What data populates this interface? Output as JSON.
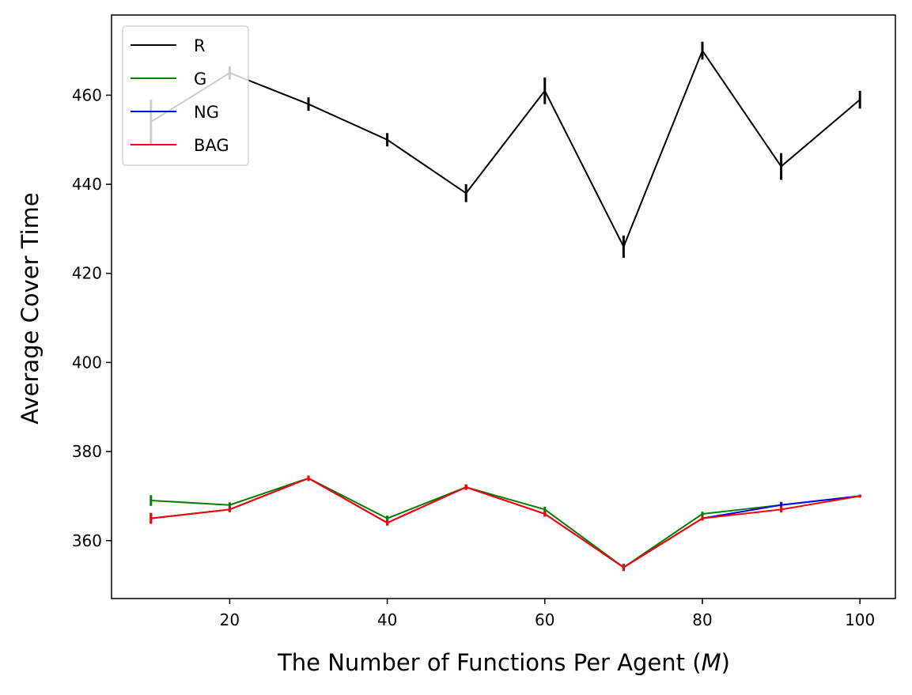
{
  "chart_data": {
    "type": "line",
    "xlabel": "The Number of Functions Per Agent (",
    "xlabel_var": "M",
    "xlabel_close": ")",
    "ylabel": "Average Cover Time",
    "xlim": [
      5,
      104.5
    ],
    "ylim": [
      347,
      478
    ],
    "xticks": [
      20,
      40,
      60,
      80,
      100
    ],
    "yticks": [
      360,
      380,
      400,
      420,
      440,
      460
    ],
    "grid": false,
    "legend_position": "top-left",
    "x": [
      10,
      20,
      30,
      40,
      50,
      60,
      70,
      80,
      90,
      100
    ],
    "series": [
      {
        "name": "R",
        "color": "#000000",
        "values": [
          454,
          465,
          458,
          450,
          438,
          461,
          426,
          470,
          444,
          459
        ],
        "errors": [
          5,
          1.5,
          1.5,
          1.5,
          2,
          3,
          2.5,
          2,
          3,
          2
        ]
      },
      {
        "name": "G",
        "color": "#008000",
        "values": [
          369,
          368,
          374,
          365,
          372,
          367,
          354,
          366,
          368,
          370
        ],
        "errors": [
          1.2,
          0.6,
          0.6,
          0.6,
          0.6,
          0.6,
          0.8,
          0.5,
          0.5,
          0.3
        ]
      },
      {
        "name": "NG",
        "color": "#0000ff",
        "values": [
          365,
          367,
          374,
          364,
          372,
          366,
          354,
          365,
          368,
          370
        ],
        "errors": [
          1.2,
          0.6,
          0.6,
          0.6,
          0.6,
          0.6,
          0.8,
          0.5,
          0.7,
          0.3
        ]
      },
      {
        "name": "BAG",
        "color": "#ff0000",
        "values": [
          365,
          367,
          374,
          364,
          372,
          366,
          354,
          365,
          367,
          370
        ],
        "errors": [
          1.2,
          0.6,
          0.6,
          0.6,
          0.6,
          0.6,
          0.8,
          0.5,
          0.7,
          0.3
        ]
      }
    ]
  }
}
